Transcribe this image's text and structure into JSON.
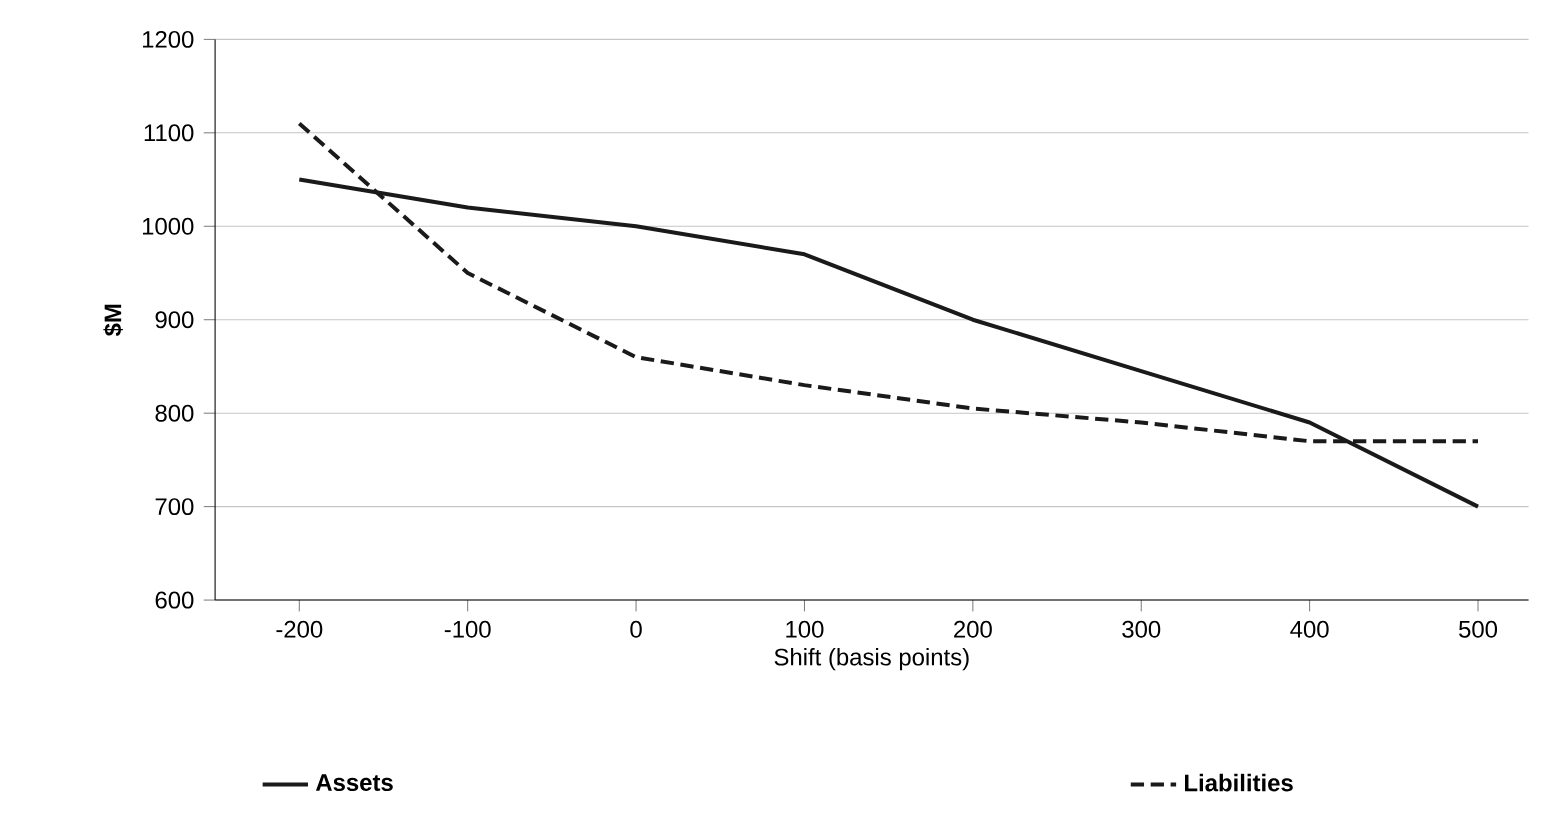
{
  "chart_data": {
    "type": "line",
    "xlabel": "Shift (basis points)",
    "ylabel": "$M",
    "x": [
      -200,
      -100,
      0,
      100,
      200,
      300,
      400,
      500
    ],
    "series": [
      {
        "name": "Assets",
        "color": "#1a1a1a",
        "line_style": "solid",
        "values": [
          1050,
          1020,
          1000,
          970,
          900,
          845,
          790,
          700
        ]
      },
      {
        "name": "Liabilities",
        "color": "#1a1a1a",
        "line_style": "dashed",
        "values": [
          1110,
          950,
          860,
          830,
          805,
          790,
          770,
          770
        ]
      }
    ],
    "xlim": [
      -250,
      530
    ],
    "ylim": [
      600,
      1200
    ],
    "xticks": [
      -200,
      -100,
      0,
      100,
      200,
      300,
      400,
      500
    ],
    "yticks": [
      600,
      700,
      800,
      900,
      1000,
      1100,
      1200
    ],
    "grid": "y",
    "legend": "bottom",
    "marker": "none"
  }
}
